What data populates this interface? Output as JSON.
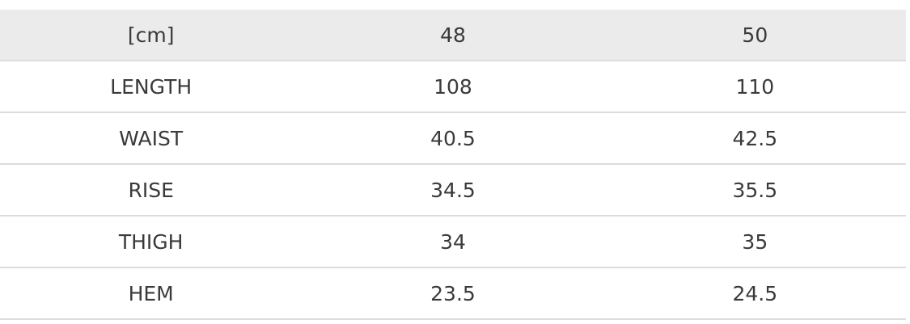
{
  "header": [
    "[cm]",
    "48",
    "50"
  ],
  "rows": [
    [
      "LENGTH",
      "108",
      "110"
    ],
    [
      "WAIST",
      "40.5",
      "42.5"
    ],
    [
      "RISE",
      "34.5",
      "35.5"
    ],
    [
      "THIGH",
      "34",
      "35"
    ],
    [
      "HEM",
      "23.5",
      "24.5"
    ]
  ]
}
